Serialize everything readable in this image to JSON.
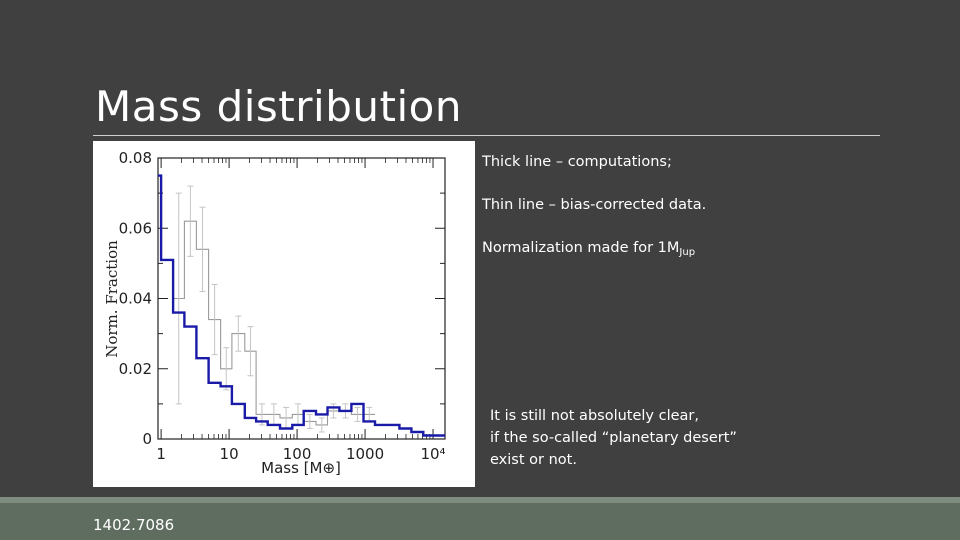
{
  "slide": {
    "title": "Mass distribution",
    "footer": "1402.7086"
  },
  "notes": {
    "line1": "Thick line – computations;",
    "line2": "Thin line – bias-corrected data.",
    "line3_main": "Normalization made for 1M",
    "line3_sub": "Jup"
  },
  "conclusion": {
    "line1": "It is still not absolutely clear,",
    "line2": "if the so-called “planetary desert”",
    "line3": "exist or not."
  },
  "colors": {
    "background": "#404040",
    "footer": "#5f6d61",
    "computed_line": "#1a1aa8",
    "data_line": "#9a9a9a"
  },
  "chart_data": {
    "type": "line",
    "xlabel": "Mass [M⊕]",
    "ylabel": "Norm. Fraction",
    "x_scale": "log",
    "xlim": [
      0.9,
      15000
    ],
    "ylim": [
      0,
      0.08
    ],
    "x_ticks": [
      "1",
      "10",
      "100",
      "1000",
      "10⁴"
    ],
    "x_tick_values": [
      1,
      10,
      100,
      1000,
      10000
    ],
    "y_ticks": [
      "0",
      "0.02",
      "0.04",
      "0.06",
      "0.08"
    ],
    "y_tick_values": [
      0,
      0.02,
      0.04,
      0.06,
      0.08
    ],
    "series": [
      {
        "style": "thick",
        "edges": [
          0.9,
          1.0,
          1.5,
          2.2,
          3.3,
          5,
          7.5,
          11,
          17,
          25,
          37,
          56,
          85,
          125,
          190,
          280,
          420,
          630,
          950,
          1400,
          2100,
          3200,
          4800,
          7200,
          10800,
          15000
        ],
        "values": [
          0.075,
          0.051,
          0.036,
          0.032,
          0.023,
          0.016,
          0.015,
          0.01,
          0.006,
          0.005,
          0.004,
          0.003,
          0.004,
          0.008,
          0.007,
          0.009,
          0.008,
          0.01,
          0.005,
          0.004,
          0.004,
          0.003,
          0.002,
          0.001,
          0.001
        ]
      },
      {
        "style": "thin",
        "edges": [
          1.5,
          2.2,
          3.3,
          5,
          7.5,
          11,
          17,
          25,
          37,
          56,
          85,
          125,
          190,
          280,
          420,
          630,
          950,
          1400
        ],
        "values": [
          0.04,
          0.062,
          0.054,
          0.034,
          0.02,
          0.03,
          0.025,
          0.007,
          0.007,
          0.006,
          0.007,
          0.005,
          0.004,
          0.008,
          0.008,
          0.007,
          0.007
        ],
        "err": [
          0.03,
          0.01,
          0.012,
          0.01,
          0.006,
          0.005,
          0.007,
          0.003,
          0.003,
          0.003,
          0.003,
          0.002,
          0.002,
          0.002,
          0.002,
          0.002,
          0.002
        ]
      }
    ]
  }
}
